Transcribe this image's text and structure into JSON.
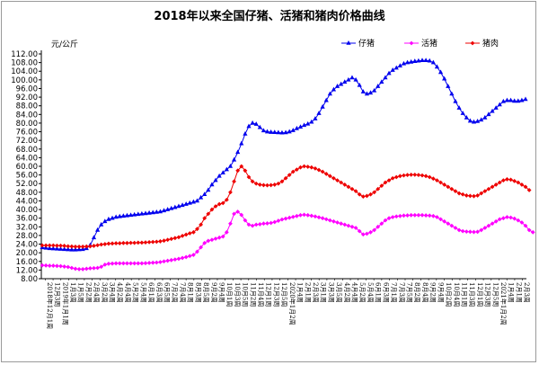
{
  "chart_data": {
    "type": "line",
    "title": "2018年以来全国仔猪、活猪和猪肉价格曲线",
    "unit_label": "元/公斤",
    "ylim": [
      8,
      112
    ],
    "ytick_step": 4,
    "grid": false,
    "legend_position": "top-right",
    "x_labels": [
      "2018年12月1周",
      "12月3周",
      "2019年1月1周",
      "1月3周",
      "1月5周",
      "2月2周",
      "2月4周",
      "3月2周",
      "3月4周",
      "4月2周",
      "4月4周",
      "5月2周",
      "5月4周",
      "6月1周",
      "6月3周",
      "6月5周",
      "7月2周",
      "7月4周",
      "8月1周",
      "8月3周",
      "8月5周",
      "9月2周",
      "9月4周",
      "10月1周",
      "10月3周",
      "10月5周",
      "11月2周",
      "11月4周",
      "12月1周",
      "12月3周",
      "12月5周",
      "2020年1月2周",
      "1月4周",
      "2月1周",
      "2月3周",
      "3月1周",
      "3月3周",
      "3月5周",
      "4月2周",
      "4月4周",
      "5月2周",
      "5月4周",
      "6月1周",
      "6月3周",
      "7月1周",
      "7月3周",
      "7月5周",
      "8月2周",
      "8月4周",
      "9月2周",
      "9月4周",
      "10月2周",
      "10月4周",
      "11月1周",
      "11月3周",
      "12月1周",
      "12月3周",
      "12月5周",
      "2021年1月2周",
      "1月4周",
      "2月1周",
      "2月3周"
    ],
    "series": [
      {
        "name": "仔猪",
        "color": "#0000ee",
        "marker": "triangle",
        "values": [
          22.4,
          22.2,
          22.0,
          21.9,
          21.8,
          21.7,
          21.6,
          21.5,
          21.4,
          21.4,
          21.5,
          21.6,
          22.0,
          23.5,
          27.0,
          30.5,
          33.0,
          34.5,
          35.5,
          36.0,
          36.5,
          36.8,
          37.0,
          37.2,
          37.4,
          37.6,
          37.8,
          38.0,
          38.2,
          38.4,
          38.6,
          38.8,
          39.0,
          39.5,
          40.0,
          40.5,
          41.0,
          41.5,
          42.0,
          42.5,
          43.0,
          43.5,
          44.0,
          45.5,
          47.0,
          49.0,
          51.5,
          53.5,
          55.5,
          57.0,
          58.5,
          60.0,
          63.0,
          66.5,
          70.5,
          75.0,
          78.5,
          80.0,
          79.5,
          78.0,
          76.5,
          76.0,
          75.8,
          75.7,
          75.6,
          75.5,
          75.6,
          76.0,
          76.6,
          77.5,
          78.2,
          79.0,
          79.6,
          80.5,
          82.0,
          84.5,
          87.5,
          90.5,
          93.5,
          95.5,
          97.0,
          98.0,
          99.0,
          100.0,
          101.0,
          100.0,
          97.5,
          94.5,
          93.5,
          94.0,
          95.0,
          97.0,
          99.0,
          101.0,
          103.0,
          104.5,
          105.5,
          106.5,
          107.5,
          108.0,
          108.3,
          108.6,
          108.8,
          109.0,
          109.0,
          108.8,
          108.0,
          106.0,
          103.5,
          100.5,
          97.0,
          93.5,
          90.0,
          87.0,
          84.5,
          82.5,
          81.0,
          80.5,
          80.8,
          81.5,
          82.5,
          84.0,
          85.5,
          87.0,
          88.5,
          90.0,
          90.5,
          90.5,
          90.2,
          90.2,
          90.5,
          91.0
        ]
      },
      {
        "name": "活猪",
        "color": "#ff00ff",
        "marker": "diamond",
        "values": [
          14.2,
          14.1,
          14.0,
          14.0,
          13.9,
          13.8,
          13.6,
          13.4,
          13.0,
          12.6,
          12.4,
          12.4,
          12.6,
          12.8,
          12.9,
          13.0,
          13.5,
          14.5,
          14.9,
          15.0,
          15.1,
          15.1,
          15.1,
          15.1,
          15.1,
          15.1,
          15.1,
          15.1,
          15.2,
          15.3,
          15.4,
          15.5,
          15.7,
          16.0,
          16.3,
          16.6,
          16.9,
          17.2,
          17.6,
          18.0,
          18.5,
          19.0,
          20.5,
          22.5,
          24.5,
          25.5,
          26.0,
          26.5,
          27.0,
          27.5,
          29.5,
          33.5,
          38.0,
          39.0,
          37.5,
          35.0,
          33.0,
          32.5,
          33.0,
          33.2,
          33.5,
          33.6,
          33.8,
          34.2,
          34.8,
          35.4,
          35.8,
          36.2,
          36.6,
          37.0,
          37.4,
          37.6,
          37.4,
          37.1,
          36.8,
          36.4,
          36.0,
          35.5,
          35.0,
          34.5,
          34.0,
          33.5,
          33.0,
          32.5,
          32.0,
          31.5,
          30.0,
          28.5,
          28.8,
          29.5,
          30.5,
          32.0,
          33.5,
          35.0,
          36.0,
          36.5,
          36.8,
          37.0,
          37.2,
          37.3,
          37.4,
          37.4,
          37.4,
          37.4,
          37.3,
          37.2,
          37.0,
          36.5,
          35.5,
          34.5,
          33.5,
          32.5,
          31.5,
          30.5,
          30.0,
          29.8,
          29.7,
          29.6,
          29.7,
          30.5,
          31.5,
          32.5,
          33.5,
          34.5,
          35.5,
          36.0,
          36.5,
          36.3,
          35.8,
          35.0,
          34.0,
          32.5,
          30.5,
          29.5
        ]
      },
      {
        "name": "猪肉",
        "color": "#ee0000",
        "marker": "diamond",
        "values": [
          23.4,
          23.4,
          23.4,
          23.4,
          23.3,
          23.3,
          23.2,
          23.0,
          22.9,
          22.8,
          22.8,
          22.8,
          22.9,
          23.0,
          23.2,
          23.5,
          23.8,
          24.0,
          24.2,
          24.3,
          24.4,
          24.4,
          24.5,
          24.5,
          24.6,
          24.6,
          24.7,
          24.7,
          24.8,
          24.9,
          25.0,
          25.1,
          25.3,
          25.6,
          26.0,
          26.4,
          26.8,
          27.2,
          27.8,
          28.4,
          29.0,
          29.5,
          31.0,
          33.0,
          36.0,
          38.0,
          40.0,
          41.5,
          42.5,
          43.0,
          44.5,
          48.0,
          53.0,
          58.0,
          60.0,
          58.0,
          55.0,
          53.0,
          52.0,
          51.5,
          51.3,
          51.2,
          51.3,
          51.5,
          52.0,
          53.0,
          54.5,
          56.0,
          57.5,
          58.5,
          59.5,
          60.0,
          59.8,
          59.5,
          59.0,
          58.3,
          57.5,
          56.5,
          55.5,
          54.5,
          53.5,
          52.5,
          51.5,
          50.5,
          49.5,
          48.5,
          47.0,
          46.0,
          46.3,
          47.0,
          48.0,
          49.5,
          51.0,
          52.5,
          53.5,
          54.5,
          55.0,
          55.5,
          55.8,
          56.0,
          56.1,
          56.1,
          56.0,
          55.8,
          55.5,
          55.0,
          54.3,
          53.5,
          52.5,
          51.5,
          50.5,
          49.5,
          48.5,
          47.5,
          47.0,
          46.5,
          46.3,
          46.2,
          46.5,
          47.5,
          48.5,
          49.5,
          50.5,
          51.5,
          52.5,
          53.5,
          54.0,
          53.8,
          53.2,
          52.5,
          51.5,
          50.5,
          49.0
        ]
      }
    ]
  }
}
